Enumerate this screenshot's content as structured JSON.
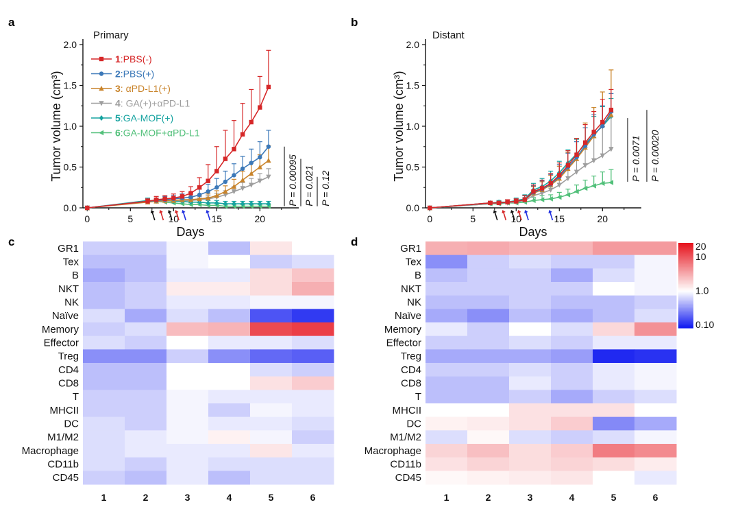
{
  "panels": {
    "a": "a",
    "b": "b",
    "c": "c",
    "d": "d"
  },
  "colors": {
    "s1": "#d62728",
    "s2": "#3b78b8",
    "s3": "#c9842b",
    "s4": "#9e9e9e",
    "s5": "#16a3a0",
    "s6": "#52c07a",
    "arrow_black": "#111111",
    "arrow_red": "#d62728",
    "arrow_blue": "#1f2ee0"
  },
  "legend": [
    {
      "num": "1",
      "sep": ":",
      "label": "PBS(-)",
      "bold": false
    },
    {
      "num": "2",
      "sep": ":",
      "label": "PBS(+)",
      "bold": false
    },
    {
      "num": "3",
      "sep": ":",
      "label": " αPD-L1(+)",
      "bold": false
    },
    {
      "num": "4",
      "sep": ":",
      "label": " GA(+)+αPD-L1",
      "bold": false
    },
    {
      "num": "5",
      "sep": ":",
      "label": "GA-MOF(+)",
      "bold": false
    },
    {
      "num": "6",
      "sep": ":",
      "label": "GA-MOF+αPD-L1",
      "bold": false
    }
  ],
  "chart_data": [
    {
      "panel": "a",
      "type": "line",
      "corner_label": "Primary",
      "xlabel": "Days",
      "ylabel": "Tumor volume (cm³)",
      "xlim": [
        -0.5,
        24.5
      ],
      "ylim": [
        0,
        2.0
      ],
      "xticks": [
        "0",
        "5",
        "10",
        "15",
        "20"
      ],
      "yticks": [
        "0.0",
        "0.5",
        "1.0",
        "1.5",
        "2.0"
      ],
      "x": [
        0,
        7,
        8,
        9,
        10,
        11,
        12,
        13,
        14,
        15,
        16,
        17,
        18,
        19,
        20,
        21
      ],
      "series": [
        {
          "name": "PBS(-)",
          "values": [
            0,
            0.08,
            0.1,
            0.11,
            0.12,
            0.14,
            0.18,
            0.25,
            0.33,
            0.45,
            0.6,
            0.72,
            0.9,
            1.05,
            1.23,
            1.48
          ],
          "err": [
            0,
            0.03,
            0.04,
            0.04,
            0.05,
            0.06,
            0.08,
            0.12,
            0.2,
            0.3,
            0.35,
            0.35,
            0.38,
            0.4,
            0.38,
            0.45
          ]
        },
        {
          "name": "PBS(+)",
          "values": [
            0,
            0.08,
            0.09,
            0.1,
            0.11,
            0.12,
            0.13,
            0.16,
            0.2,
            0.25,
            0.32,
            0.4,
            0.48,
            0.55,
            0.62,
            0.75
          ],
          "err": [
            0,
            0.03,
            0.03,
            0.04,
            0.04,
            0.05,
            0.06,
            0.07,
            0.09,
            0.11,
            0.13,
            0.14,
            0.15,
            0.17,
            0.19,
            0.2
          ]
        },
        {
          "name": "αPD-L1(+)",
          "values": [
            0,
            0.07,
            0.08,
            0.09,
            0.09,
            0.1,
            0.1,
            0.11,
            0.12,
            0.15,
            0.2,
            0.26,
            0.34,
            0.42,
            0.5,
            0.58
          ],
          "err": [
            0,
            0.03,
            0.03,
            0.03,
            0.03,
            0.04,
            0.04,
            0.04,
            0.05,
            0.06,
            0.07,
            0.09,
            0.11,
            0.13,
            0.15,
            0.18
          ]
        },
        {
          "name": "GA(+)+αPD-L1",
          "values": [
            0,
            0.08,
            0.08,
            0.08,
            0.09,
            0.09,
            0.09,
            0.1,
            0.11,
            0.13,
            0.16,
            0.2,
            0.24,
            0.28,
            0.33,
            0.38
          ],
          "err": [
            0,
            0.02,
            0.02,
            0.03,
            0.03,
            0.03,
            0.03,
            0.04,
            0.04,
            0.05,
            0.05,
            0.06,
            0.07,
            0.08,
            0.09,
            0.1
          ]
        },
        {
          "name": "GA-MOF(+)",
          "values": [
            0,
            0.09,
            0.09,
            0.09,
            0.08,
            0.08,
            0.07,
            0.07,
            0.06,
            0.06,
            0.05,
            0.05,
            0.05,
            0.05,
            0.05,
            0.05
          ],
          "err": [
            0,
            0.03,
            0.03,
            0.03,
            0.03,
            0.03,
            0.03,
            0.03,
            0.03,
            0.03,
            0.03,
            0.03,
            0.03,
            0.03,
            0.03,
            0.03
          ]
        },
        {
          "name": "GA-MOF+αPD-L1",
          "values": [
            0,
            0.08,
            0.08,
            0.07,
            0.06,
            0.05,
            0.04,
            0.04,
            0.03,
            0.03,
            0.02,
            0.02,
            0.02,
            0.02,
            0.02,
            0.02
          ],
          "err": [
            0,
            0.02,
            0.02,
            0.02,
            0.02,
            0.02,
            0.02,
            0.02,
            0.02,
            0.02,
            0.02,
            0.02,
            0.02,
            0.02,
            0.02,
            0.02
          ]
        }
      ],
      "treatment_arrows": [
        {
          "day": 7.5,
          "color": "black"
        },
        {
          "day": 8.5,
          "color": "red"
        },
        {
          "day": 9.5,
          "color": "black"
        },
        {
          "day": 10.3,
          "color": "red"
        },
        {
          "day": 11.1,
          "color": "blue"
        },
        {
          "day": 13.9,
          "color": "blue"
        }
      ],
      "pvalues": [
        "P = 0.00095",
        "P = 0.021",
        "P = 0.12"
      ]
    },
    {
      "panel": "b",
      "type": "line",
      "corner_label": "Distant",
      "xlabel": "Days",
      "ylabel": "Tumor volume (cm³)",
      "xlim": [
        -0.5,
        24.5
      ],
      "ylim": [
        0,
        2.0
      ],
      "xticks": [
        "0",
        "5",
        "10",
        "15",
        "20"
      ],
      "yticks": [
        "0.0",
        "0.5",
        "1.0",
        "1.5",
        "2.0"
      ],
      "x": [
        0,
        7,
        8,
        9,
        10,
        11,
        12,
        13,
        14,
        15,
        16,
        17,
        18,
        19,
        20,
        21
      ],
      "series": [
        {
          "name": "PBS(-)",
          "values": [
            0,
            0.06,
            0.06,
            0.07,
            0.08,
            0.1,
            0.2,
            0.24,
            0.3,
            0.4,
            0.52,
            0.65,
            0.8,
            0.93,
            1.05,
            1.2
          ],
          "err": [
            0,
            0.02,
            0.02,
            0.03,
            0.03,
            0.05,
            0.08,
            0.1,
            0.12,
            0.15,
            0.18,
            0.2,
            0.22,
            0.25,
            0.28,
            0.25
          ]
        },
        {
          "name": "PBS(+)",
          "values": [
            0,
            0.06,
            0.06,
            0.07,
            0.08,
            0.1,
            0.19,
            0.23,
            0.29,
            0.38,
            0.5,
            0.62,
            0.76,
            0.9,
            1.0,
            1.18
          ],
          "err": [
            0,
            0.02,
            0.02,
            0.03,
            0.03,
            0.05,
            0.08,
            0.1,
            0.12,
            0.15,
            0.17,
            0.19,
            0.22,
            0.24,
            0.25,
            0.22
          ]
        },
        {
          "name": "αPD-L1(+)",
          "values": [
            0,
            0.06,
            0.06,
            0.07,
            0.08,
            0.1,
            0.18,
            0.22,
            0.28,
            0.36,
            0.48,
            0.6,
            0.74,
            0.88,
            1.02,
            1.14
          ],
          "err": [
            0,
            0.02,
            0.02,
            0.03,
            0.03,
            0.05,
            0.08,
            0.1,
            0.12,
            0.15,
            0.2,
            0.25,
            0.3,
            0.35,
            0.4,
            0.55
          ]
        },
        {
          "name": "GA(+)+αPD-L1",
          "values": [
            0,
            0.05,
            0.06,
            0.06,
            0.07,
            0.09,
            0.15,
            0.18,
            0.22,
            0.28,
            0.36,
            0.44,
            0.52,
            0.58,
            0.64,
            0.72
          ],
          "err": [
            0,
            0.02,
            0.02,
            0.02,
            0.03,
            0.04,
            0.06,
            0.08,
            0.1,
            0.12,
            0.15,
            0.18,
            0.22,
            0.28,
            0.35,
            0.45
          ]
        },
        {
          "name": "GA-MOF(+)",
          "values": [
            0,
            0.06,
            0.07,
            0.07,
            0.09,
            0.11,
            0.22,
            0.26,
            0.33,
            0.43,
            0.55,
            0.66,
            0.78,
            0.9,
            1.0,
            1.12
          ],
          "err": [
            0,
            0.02,
            0.02,
            0.03,
            0.03,
            0.05,
            0.08,
            0.1,
            0.12,
            0.14,
            0.16,
            0.18,
            0.2,
            0.22,
            0.24,
            0.22
          ]
        },
        {
          "name": "GA-MOF+αPD-L1",
          "values": [
            0,
            0.05,
            0.05,
            0.06,
            0.06,
            0.07,
            0.09,
            0.1,
            0.11,
            0.13,
            0.16,
            0.2,
            0.24,
            0.27,
            0.3,
            0.31
          ],
          "err": [
            0,
            0.02,
            0.02,
            0.02,
            0.02,
            0.03,
            0.04,
            0.05,
            0.05,
            0.06,
            0.07,
            0.08,
            0.1,
            0.12,
            0.14,
            0.16
          ]
        }
      ],
      "treatment_arrows": [
        {
          "day": 7.5,
          "color": "black"
        },
        {
          "day": 8.5,
          "color": "red"
        },
        {
          "day": 9.5,
          "color": "black"
        },
        {
          "day": 10.3,
          "color": "red"
        },
        {
          "day": 11.1,
          "color": "blue"
        },
        {
          "day": 13.9,
          "color": "blue"
        }
      ],
      "pvalues": [
        "P = 0.0071",
        "P = 0.00020"
      ]
    },
    {
      "panel": "c",
      "type": "heatmap",
      "rows": [
        "GR1",
        "Tex",
        "B",
        "NKT",
        "NK",
        "Naïve",
        "Memory",
        "Effector",
        "Treg",
        "CD4",
        "CD8",
        "T",
        "MHCII",
        "DC",
        "M1/M2",
        "Macrophage",
        "CD11b",
        "CD45"
      ],
      "columns": [
        "1",
        "2",
        "3",
        "4",
        "5",
        "6"
      ],
      "scale": "log10",
      "values": [
        [
          0.6,
          0.6,
          0.9,
          0.5,
          1.4,
          1.0
        ],
        [
          0.5,
          0.5,
          0.9,
          1.0,
          0.6,
          0.7
        ],
        [
          0.4,
          0.5,
          0.8,
          0.8,
          1.6,
          2.2
        ],
        [
          0.5,
          0.6,
          1.3,
          1.3,
          1.6,
          3.0
        ],
        [
          0.5,
          0.6,
          0.8,
          0.8,
          0.9,
          0.9
        ],
        [
          0.7,
          0.4,
          0.7,
          0.5,
          0.16,
          0.12
        ],
        [
          0.6,
          0.7,
          2.5,
          2.8,
          12,
          14
        ],
        [
          0.7,
          0.6,
          1.0,
          0.8,
          0.8,
          0.7
        ],
        [
          0.3,
          0.3,
          0.6,
          0.3,
          0.2,
          0.18
        ],
        [
          0.5,
          0.5,
          1.0,
          1.0,
          0.7,
          0.6
        ],
        [
          0.5,
          0.5,
          1.0,
          1.0,
          1.5,
          2.0
        ],
        [
          0.6,
          0.6,
          0.9,
          0.8,
          0.8,
          0.8
        ],
        [
          0.6,
          0.6,
          0.9,
          0.6,
          0.9,
          0.8
        ],
        [
          0.7,
          0.6,
          0.9,
          0.8,
          0.8,
          0.7
        ],
        [
          0.7,
          0.8,
          0.9,
          1.2,
          0.9,
          0.6
        ],
        [
          0.7,
          0.8,
          0.8,
          0.8,
          1.4,
          0.8
        ],
        [
          0.7,
          0.6,
          0.8,
          0.7,
          0.7,
          0.7
        ],
        [
          0.6,
          0.5,
          0.8,
          0.5,
          0.7,
          0.7
        ]
      ]
    },
    {
      "panel": "d",
      "type": "heatmap",
      "rows": [
        "GR1",
        "Tex",
        "B",
        "NKT",
        "NK",
        "Naïve",
        "Memory",
        "Effector",
        "Treg",
        "CD4",
        "CD8",
        "T",
        "MHCII",
        "DC",
        "M1/M2",
        "Macrophage",
        "CD11b",
        "CD45"
      ],
      "columns": [
        "1",
        "2",
        "3",
        "4",
        "5",
        "6"
      ],
      "scale": "log10",
      "colorbar_ticks": [
        "20",
        "10",
        "1.0",
        "0.10"
      ],
      "colorbar_range": [
        0.08,
        25
      ],
      "values": [
        [
          3.0,
          3.2,
          2.8,
          2.8,
          4.0,
          4.0
        ],
        [
          0.3,
          0.6,
          0.7,
          0.6,
          0.6,
          0.9
        ],
        [
          0.5,
          0.6,
          0.6,
          0.4,
          0.7,
          0.9
        ],
        [
          0.6,
          0.6,
          0.6,
          0.6,
          1.0,
          0.9
        ],
        [
          0.5,
          0.5,
          0.6,
          0.5,
          0.5,
          0.6
        ],
        [
          0.4,
          0.3,
          0.5,
          0.4,
          0.5,
          0.7
        ],
        [
          0.8,
          0.6,
          1.0,
          0.7,
          1.7,
          4.5
        ],
        [
          0.6,
          0.6,
          0.7,
          0.6,
          0.8,
          0.8
        ],
        [
          0.4,
          0.4,
          0.4,
          0.35,
          0.1,
          0.11
        ],
        [
          0.6,
          0.6,
          0.7,
          0.6,
          0.8,
          0.9
        ],
        [
          0.5,
          0.5,
          0.8,
          0.6,
          0.8,
          0.9
        ],
        [
          0.5,
          0.5,
          0.6,
          0.4,
          0.6,
          0.7
        ],
        [
          1.0,
          1.0,
          1.5,
          1.5,
          1.5,
          1.0
        ],
        [
          1.2,
          1.3,
          1.5,
          2.0,
          0.28,
          0.4
        ],
        [
          0.7,
          1.1,
          0.7,
          0.6,
          0.7,
          0.9
        ],
        [
          1.8,
          2.4,
          1.6,
          2.0,
          6.0,
          5.0
        ],
        [
          1.5,
          1.8,
          1.6,
          1.8,
          1.6,
          1.3
        ],
        [
          1.1,
          1.2,
          1.3,
          1.4,
          1.0,
          0.8
        ]
      ]
    }
  ]
}
